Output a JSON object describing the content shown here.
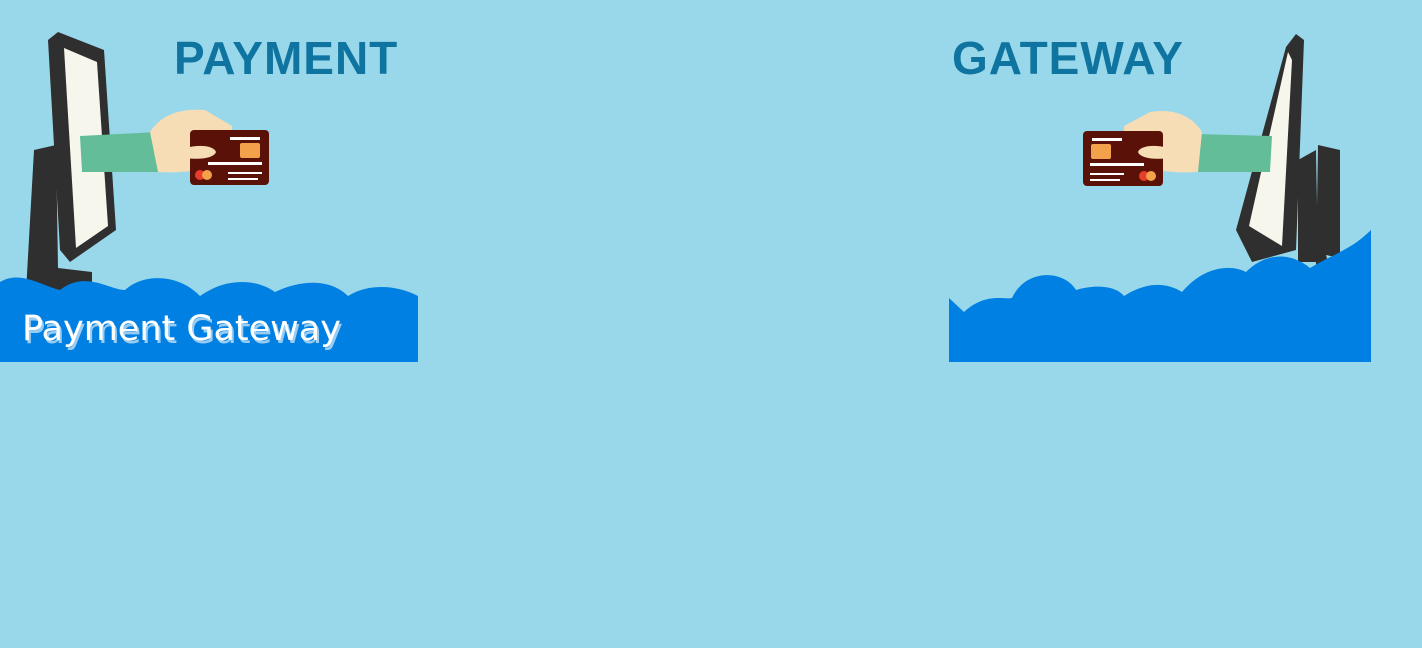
{
  "headings": {
    "left": "PAYMENT",
    "right": "GATEWAY"
  },
  "banner": {
    "label": "Payment Gateway"
  },
  "colors": {
    "background": "#99d8ea",
    "heading": "#0f74a0",
    "cloud": "#0080e2",
    "sleeve": "#62bd98",
    "skin": "#f6ddb6",
    "card": "#5a1208",
    "chip": "#f3a14a",
    "monitor_frame": "#2f2f2f",
    "monitor_screen": "#f7f6ec"
  },
  "icons": {
    "left_art": "monitor-hand-card-icon",
    "right_art": "monitor-hand-card-icon"
  }
}
